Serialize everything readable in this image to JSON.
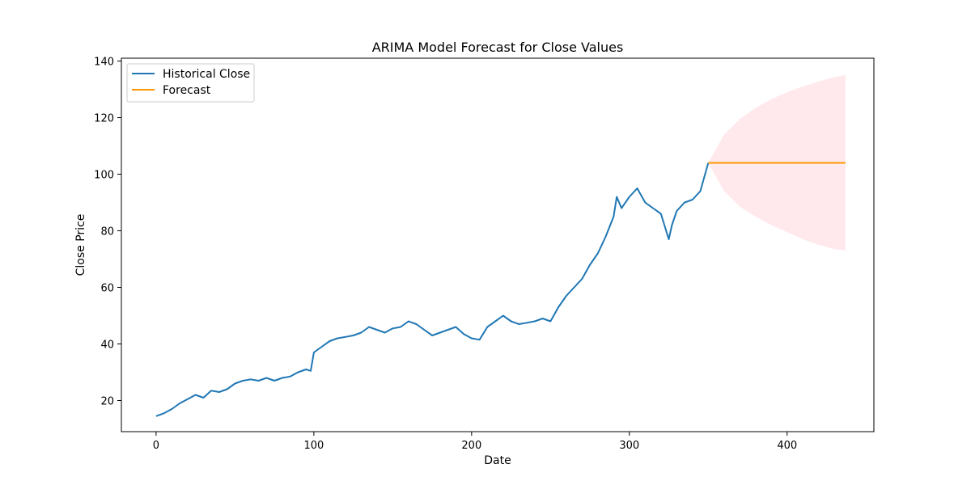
{
  "chart_data": {
    "type": "line",
    "title": "ARIMA Model Forecast for Close Values",
    "xlabel": "Date",
    "ylabel": "Close Price",
    "xlim": [
      -22,
      455
    ],
    "ylim": [
      9,
      141
    ],
    "xticks": [
      0,
      100,
      200,
      300,
      400
    ],
    "yticks": [
      20,
      40,
      60,
      80,
      100,
      120,
      140
    ],
    "grid": false,
    "legend_position": "top-left",
    "series": [
      {
        "name": "Historical Close",
        "color": "#1f77b4",
        "x": [
          0,
          5,
          10,
          15,
          20,
          25,
          30,
          35,
          40,
          45,
          50,
          55,
          60,
          65,
          70,
          75,
          80,
          85,
          90,
          95,
          98,
          100,
          105,
          110,
          115,
          120,
          125,
          130,
          135,
          140,
          145,
          150,
          155,
          160,
          165,
          170,
          175,
          180,
          185,
          190,
          195,
          200,
          205,
          210,
          215,
          220,
          225,
          230,
          235,
          240,
          245,
          250,
          255,
          260,
          265,
          270,
          275,
          280,
          285,
          290,
          292,
          295,
          300,
          305,
          310,
          315,
          320,
          325,
          327,
          330,
          335,
          340,
          345,
          350
        ],
        "y": [
          14.5,
          15.5,
          17,
          19,
          20.5,
          22,
          21,
          23.5,
          23,
          24,
          26,
          27,
          27.5,
          27,
          28,
          27,
          28,
          28.5,
          30,
          31,
          30.5,
          37,
          39,
          41,
          42,
          42.5,
          43,
          44,
          46,
          45,
          44,
          45.5,
          46,
          48,
          47,
          45,
          43,
          44,
          45,
          46,
          43.5,
          42,
          41.5,
          46,
          48,
          50,
          48,
          47,
          47.5,
          48,
          49,
          48,
          53,
          57,
          60,
          63,
          68,
          72,
          78,
          85,
          92,
          88,
          92,
          95,
          90,
          88,
          86,
          77,
          82,
          87,
          90,
          91,
          94,
          104
        ]
      },
      {
        "name": "Forecast",
        "color": "#ff9800",
        "x": [
          350,
          437
        ],
        "y": [
          104,
          104
        ]
      }
    ],
    "confidence_band": {
      "color": "#ffc0cb",
      "x": [
        350,
        360,
        370,
        380,
        390,
        400,
        410,
        420,
        430,
        437
      ],
      "lower": [
        104,
        94,
        88.5,
        85,
        82,
        79.5,
        77,
        75,
        73.5,
        73
      ],
      "upper": [
        104,
        114,
        119.5,
        123.5,
        126.5,
        129,
        131,
        132.8,
        134.3,
        135
      ]
    }
  }
}
